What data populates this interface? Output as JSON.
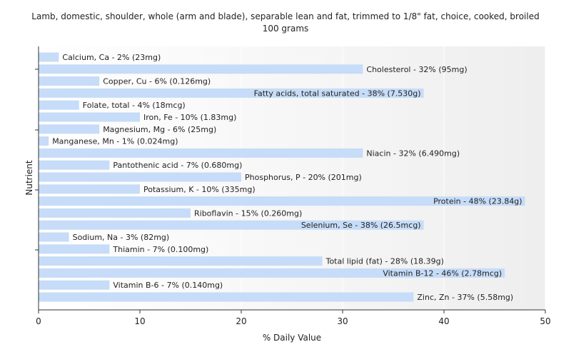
{
  "chart_data": {
    "type": "bar",
    "orientation": "horizontal",
    "title": "Lamb, domestic, shoulder, whole (arm and blade), separable lean and fat, trimmed to 1/8\" fat, choice, cooked, broiled",
    "subtitle": "100 grams",
    "xlabel": "% Daily Value",
    "ylabel": "Nutrient",
    "xlim": [
      0,
      50
    ],
    "xticks": [
      "0",
      "10",
      "20",
      "30",
      "40",
      "50"
    ],
    "grid": true,
    "bar_color": "#c6dcf8",
    "categories": [
      "Calcium, Ca",
      "Cholesterol",
      "Copper, Cu",
      "Fatty acids, total saturated",
      "Folate, total",
      "Iron, Fe",
      "Magnesium, Mg",
      "Manganese, Mn",
      "Niacin",
      "Pantothenic acid",
      "Phosphorus, P",
      "Potassium, K",
      "Protein",
      "Riboflavin",
      "Selenium, Se",
      "Sodium, Na",
      "Thiamin",
      "Total lipid (fat)",
      "Vitamin B-12",
      "Vitamin B-6",
      "Zinc, Zn"
    ],
    "values": [
      2,
      32,
      6,
      38,
      4,
      10,
      6,
      1,
      32,
      7,
      20,
      10,
      48,
      15,
      38,
      3,
      7,
      28,
      46,
      7,
      37
    ],
    "labels": [
      "Calcium, Ca - 2% (23mg)",
      "Cholesterol - 32% (95mg)",
      "Copper, Cu - 6% (0.126mg)",
      "Fatty acids, total saturated - 38% (7.530g)",
      "Folate, total - 4% (18mcg)",
      "Iron, Fe - 10% (1.83mg)",
      "Magnesium, Mg - 6% (25mg)",
      "Manganese, Mn - 1% (0.024mg)",
      "Niacin - 32% (6.490mg)",
      "Pantothenic acid - 7% (0.680mg)",
      "Phosphorus, P - 20% (201mg)",
      "Potassium, K - 10% (335mg)",
      "Protein - 48% (23.84g)",
      "Riboflavin - 15% (0.260mg)",
      "Selenium, Se - 38% (26.5mcg)",
      "Sodium, Na - 3% (82mg)",
      "Thiamin - 7% (0.100mg)",
      "Total lipid (fat) - 28% (18.39g)",
      "Vitamin B-12 - 46% (2.78mcg)",
      "Vitamin B-6 - 7% (0.140mg)",
      "Zinc, Zn - 37% (5.58mg)"
    ]
  }
}
